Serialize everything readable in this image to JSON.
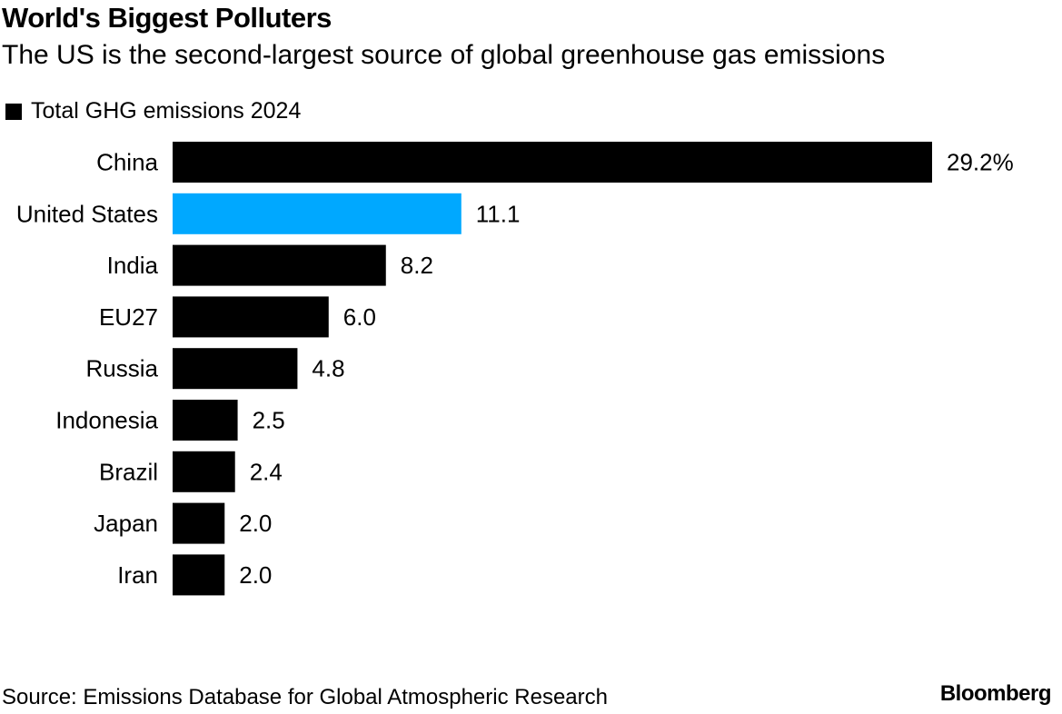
{
  "colors": {
    "default_bar": "#000000",
    "highlight_bar": "#00a8ff"
  },
  "chart_data": {
    "type": "bar",
    "orientation": "horizontal",
    "title": "World's Biggest Polluters",
    "subtitle": "The US is the second-largest source of global greenhouse gas emissions",
    "legend": [
      {
        "label": "Total GHG emissions 2024",
        "color": "#000000"
      }
    ],
    "legend_position": "top-left",
    "categories": [
      "China",
      "United States",
      "India",
      "EU27",
      "Russia",
      "Indonesia",
      "Brazil",
      "Japan",
      "Iran"
    ],
    "series": [
      {
        "name": "Total GHG emissions 2024",
        "values": [
          29.2,
          11.1,
          8.2,
          6.0,
          4.8,
          2.5,
          2.4,
          2.0,
          2.0
        ],
        "value_labels": [
          "29.2%",
          "11.1",
          "8.2",
          "6.0",
          "4.8",
          "2.5",
          "2.4",
          "2.0",
          "2.0"
        ]
      }
    ],
    "highlight_category": "United States",
    "xlabel": "",
    "ylabel": "",
    "unit": "%",
    "xlim": [
      0,
      29.2
    ],
    "grid": false
  },
  "footer": {
    "source": "Source: Emissions Database for Global Atmospheric Research",
    "brand": "Bloomberg"
  }
}
